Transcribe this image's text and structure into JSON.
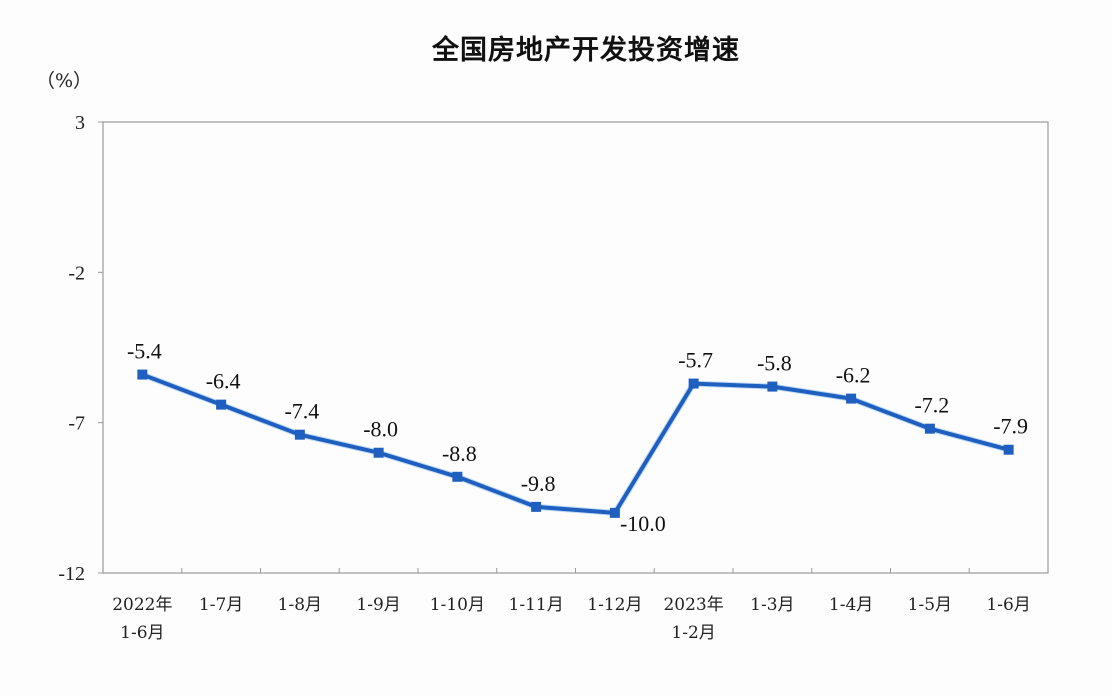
{
  "chart_data": {
    "type": "line",
    "title": "全国房地产开发投资增速",
    "ylabel": "（%）",
    "xlabel": "",
    "ylim": [
      -12,
      3
    ],
    "yticks": [
      3,
      -2,
      -7,
      -12
    ],
    "grid": false,
    "legend": null,
    "categories": [
      "2022年\n1-6月",
      "1-7月",
      "1-8月",
      "1-9月",
      "1-10月",
      "1-11月",
      "1-12月",
      "2023年\n1-2月",
      "1-3月",
      "1-4月",
      "1-5月",
      "1-6月"
    ],
    "series": [
      {
        "name": "全国房地产开发投资增速",
        "color": "#1f5fbf",
        "values": [
          -5.4,
          -6.4,
          -7.4,
          -8.0,
          -8.8,
          -9.8,
          -10.0,
          -5.7,
          -5.8,
          -6.2,
          -7.2,
          -7.9
        ],
        "labels": [
          "-5.4",
          "-6.4",
          "-7.4",
          "-8.0",
          "-8.8",
          "-9.8",
          "-10.0",
          "-5.7",
          "-5.8",
          "-6.2",
          "-7.2",
          "-7.9"
        ]
      }
    ]
  }
}
